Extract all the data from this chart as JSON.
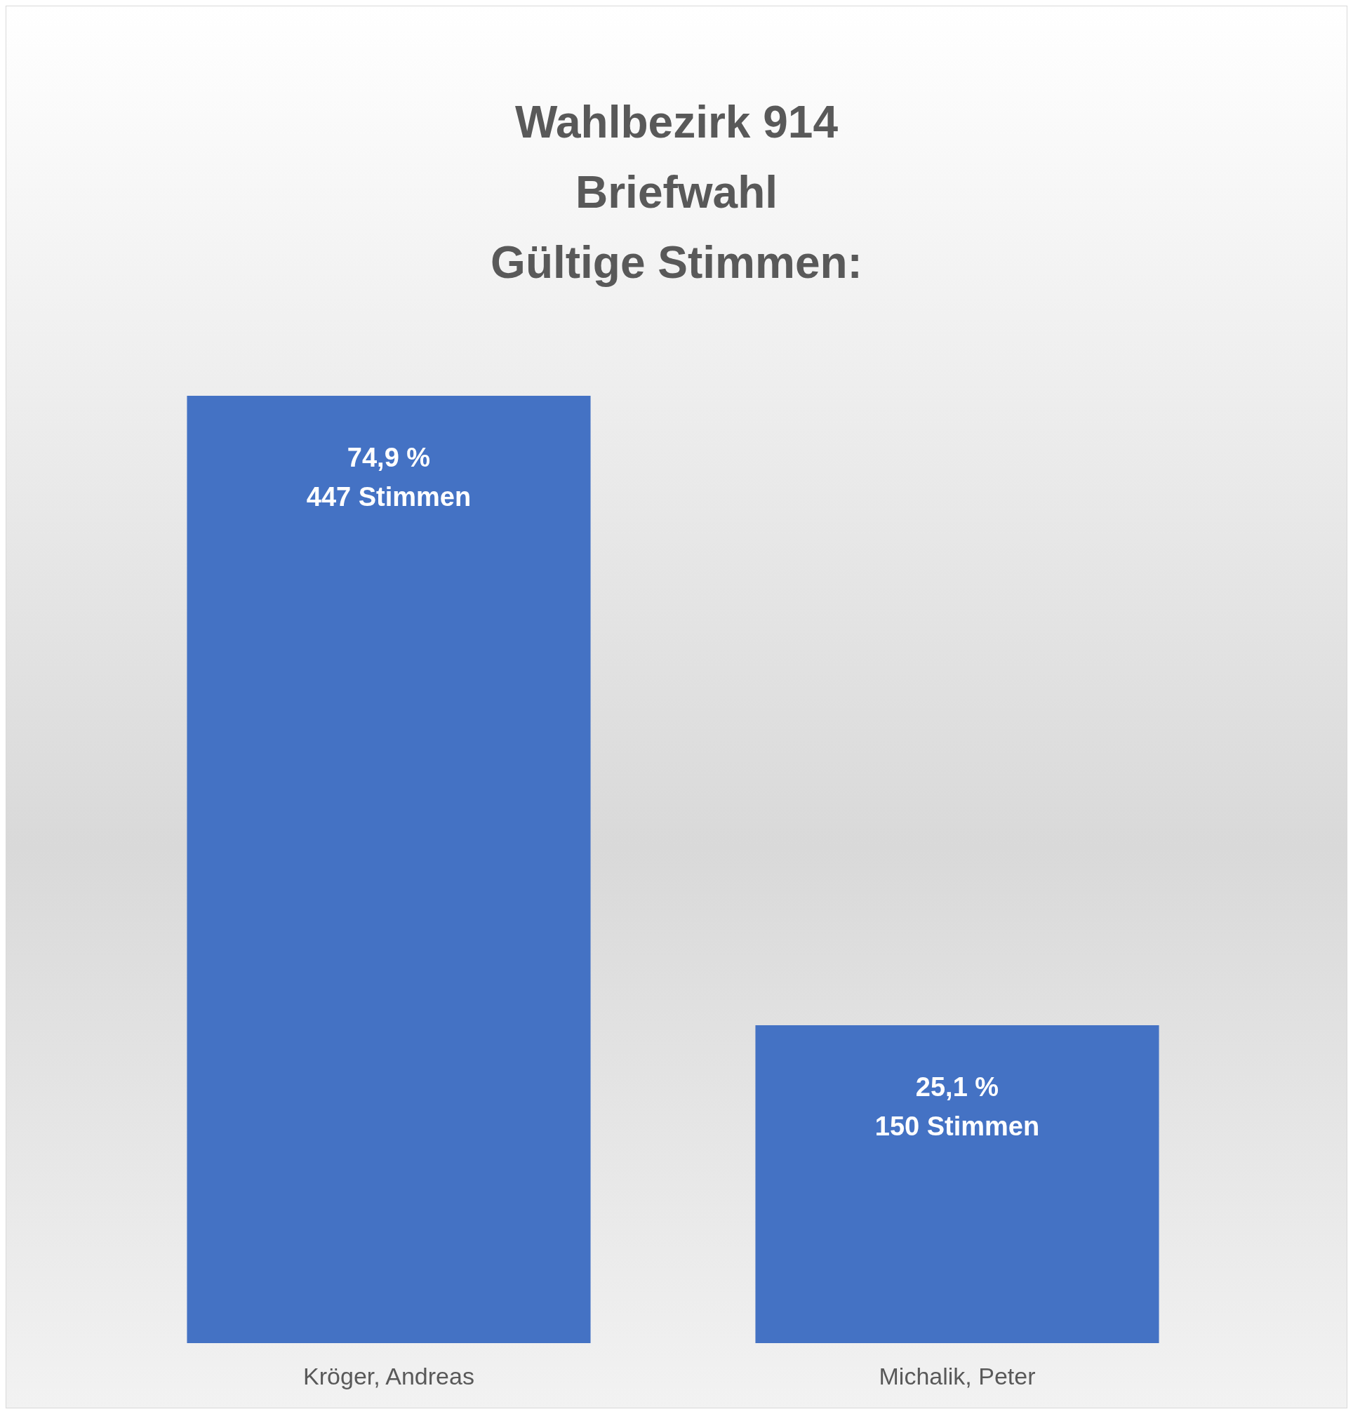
{
  "chart_data": {
    "type": "bar",
    "title": "Wahlbezirk 914\nBriefwahl\nGültige Stimmen:",
    "categories": [
      "Kröger, Andreas",
      "Michalik, Peter"
    ],
    "values": [
      447,
      150
    ],
    "value_labels": [
      "74,9 %\n447 Stimmen",
      "25,1 %\n150 Stimmen"
    ],
    "color": "#4472c4"
  }
}
